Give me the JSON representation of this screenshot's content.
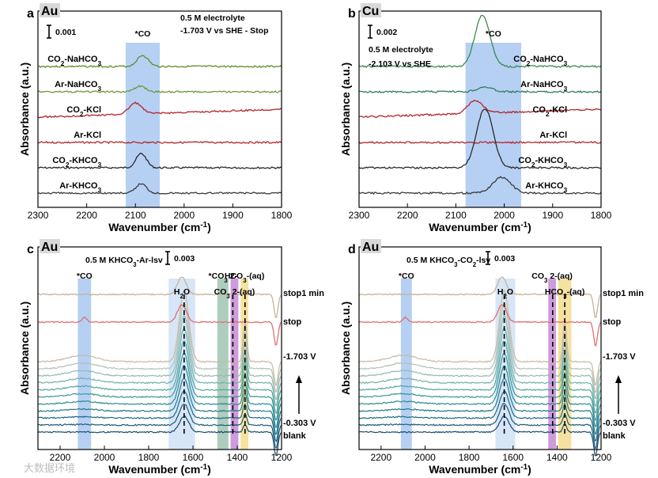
{
  "colors": {
    "co_band": "#a9c8f1",
    "h2o_band": "#cfe2f6",
    "co3_band": "#9fc4b4",
    "co3aq_band": "#c58ad6",
    "hco3aq_band": "#f3dd8f"
  },
  "panels": [
    {
      "letter": "a",
      "metal": "Au",
      "xlabel": "Wavenumber (cm-1)",
      "ylabel": "Absorbance (a.u.)",
      "xlim": [
        2300,
        1800
      ],
      "xticks": [
        2300,
        2200,
        2100,
        2000,
        1900,
        1800
      ],
      "scale_bar": "0.001",
      "annotations": [
        "0.5 M electrolyte",
        "-1.703 V vs SHE - Stop"
      ],
      "bands": [
        {
          "label": "*CO",
          "from": 2120,
          "to": 2050,
          "color": "co_band"
        }
      ],
      "traces": [
        {
          "label": "CO2-NaHCO3",
          "color": "#5e8f2b",
          "peak": 2085,
          "amp": 14,
          "width": 16
        },
        {
          "label": "Ar-NaHCO3",
          "color": "#6a9b3a",
          "peak": 2090,
          "amp": 7,
          "width": 16
        },
        {
          "label": "CO2-KCl",
          "color": "#b3262b",
          "peak": 2100,
          "amp": 14,
          "width": 18
        },
        {
          "label": "Ar-KCl",
          "color": "#b3262b",
          "peak": 2090,
          "amp": 0,
          "width": 16
        },
        {
          "label": "CO2-KHCO3",
          "color": "#2a2a2a",
          "peak": 2088,
          "amp": 18,
          "width": 15
        },
        {
          "label": "Ar-KHCO3",
          "color": "#3a3a3a",
          "peak": 2088,
          "amp": 12,
          "width": 15
        }
      ]
    },
    {
      "letter": "b",
      "metal": "Cu",
      "xlabel": "Wavenumber (cm-1)",
      "ylabel": "Absorbance (a.u.)",
      "xlim": [
        2300,
        1800
      ],
      "xticks": [
        2300,
        2200,
        2100,
        2000,
        1900,
        1800
      ],
      "scale_bar": "0.002",
      "annotations": [
        "0.5 M electrolyte",
        "-2.103 V vs SHE"
      ],
      "bands": [
        {
          "label": "*CO",
          "from": 2080,
          "to": 1965,
          "color": "co_band"
        }
      ],
      "traces": [
        {
          "label": "CO2-NaHCO3",
          "color": "#3c8a4f",
          "peak": 2045,
          "amp": 65,
          "width": 22
        },
        {
          "label": "Ar-NaHCO3",
          "color": "#2f7d5c",
          "peak": 2040,
          "amp": 6,
          "width": 22
        },
        {
          "label": "CO2-KCl",
          "color": "#b3262b",
          "peak": 2060,
          "amp": 16,
          "width": 22
        },
        {
          "label": "Ar-KCl",
          "color": "#b3262b",
          "peak": 2050,
          "amp": 0,
          "width": 20
        },
        {
          "label": "CO2-KHCO3",
          "color": "#2a2a2a",
          "peak": 2040,
          "amp": 75,
          "width": 24
        },
        {
          "label": "Ar-KHCO3",
          "color": "#3a3a3a",
          "peak": 2005,
          "amp": 20,
          "width": 26
        }
      ]
    },
    {
      "letter": "c",
      "metal": "Au",
      "xlabel": "Wavenumber (cm-1)",
      "ylabel": "Absorbance (a.u.)",
      "xlim": [
        2300,
        1200
      ],
      "xticks": [
        2200,
        2000,
        1800,
        1600,
        1400,
        1200
      ],
      "scale_bar": "0.003",
      "annotations": [
        "0.5 M KHCO3-Ar-lsv"
      ],
      "bands": [
        {
          "label": "*CO",
          "from": 2120,
          "to": 2060,
          "color": "co_band"
        },
        {
          "label": "H2O",
          "from": 1710,
          "to": 1590,
          "color": "h2o_band"
        },
        {
          "label": "*CO3 2-",
          "from": 1490,
          "to": 1440,
          "color": "co3_band"
        },
        {
          "label": "CO3 2-(aq)",
          "from": 1430,
          "to": 1395,
          "color": "co3aq_band"
        },
        {
          "label": "HCO3-(aq)",
          "from": 1385,
          "to": 1350,
          "color": "hco3aq_band"
        }
      ],
      "voltage_labels": [
        "-1.703 V",
        "-0.303 V"
      ],
      "top_labels": [
        "stop1 min",
        "stop"
      ],
      "bottom_label": "blank"
    },
    {
      "letter": "d",
      "metal": "Au",
      "xlabel": "Wavenumber (cm-1)",
      "ylabel": "Absorbance (a.u.)",
      "xlim": [
        2300,
        1200
      ],
      "xticks": [
        2200,
        2000,
        1800,
        1600,
        1400,
        1200
      ],
      "scale_bar": "0.003",
      "annotations": [
        "0.5 M KHCO3-CO2-lsv"
      ],
      "bands": [
        {
          "label": "*CO",
          "from": 2110,
          "to": 2060,
          "color": "co_band"
        },
        {
          "label": "H2O",
          "from": 1680,
          "to": 1590,
          "color": "h2o_band"
        },
        {
          "label": "CO3 2-(aq)",
          "from": 1440,
          "to": 1405,
          "color": "co3aq_band"
        },
        {
          "label": "HCO3-(aq)",
          "from": 1395,
          "to": 1335,
          "color": "hco3aq_band"
        }
      ],
      "voltage_labels": [
        "-1.703 V",
        "-0.303 V"
      ],
      "top_labels": [
        "stop1 min",
        "stop"
      ],
      "bottom_label": "blank"
    }
  ],
  "watermark": "大数据环境"
}
